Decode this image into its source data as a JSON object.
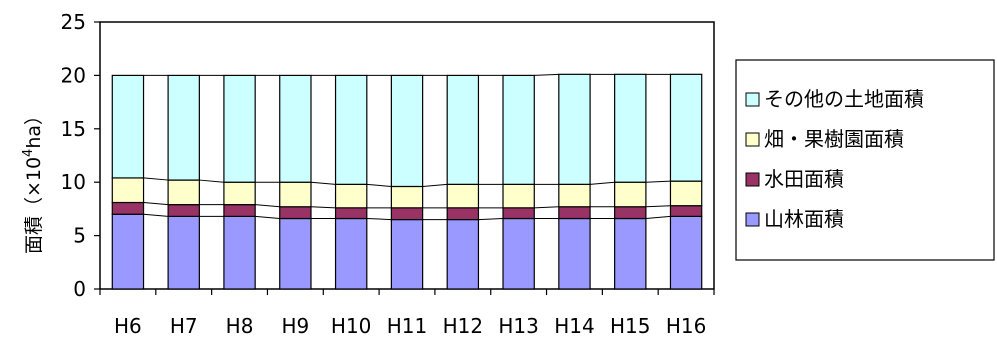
{
  "chart_data": {
    "type": "bar",
    "stacked": true,
    "categories": [
      "H6",
      "H7",
      "H8",
      "H9",
      "H10",
      "H11",
      "H12",
      "H13",
      "H14",
      "H15",
      "H16"
    ],
    "series": [
      {
        "name": "山林面積",
        "color": "#9999ff",
        "values": [
          7.0,
          6.8,
          6.8,
          6.6,
          6.6,
          6.5,
          6.5,
          6.6,
          6.6,
          6.6,
          6.8
        ]
      },
      {
        "name": "水田面積",
        "color": "#993366",
        "values": [
          1.1,
          1.1,
          1.1,
          1.1,
          1.0,
          1.1,
          1.1,
          1.0,
          1.1,
          1.1,
          1.0
        ]
      },
      {
        "name": "畑・果樹園面積",
        "color": "#ffffcc",
        "values": [
          2.3,
          2.3,
          2.1,
          2.3,
          2.2,
          2.0,
          2.2,
          2.2,
          2.1,
          2.3,
          2.3
        ]
      },
      {
        "name": "その他の土地面積",
        "color": "#ccffff",
        "values": [
          9.6,
          9.8,
          10.0,
          10.0,
          10.2,
          10.4,
          10.2,
          10.2,
          10.3,
          10.1,
          10.0
        ]
      }
    ],
    "legend_order": [
      "その他の土地面積",
      "畑・果樹園面積",
      "水田面積",
      "山林面積"
    ],
    "ylabel": "面積（×10⁴ha）",
    "ylabel_text": "面積（×10",
    "ylabel_sup": "4",
    "ylabel_unit": "ha）",
    "ylim": [
      0,
      25
    ],
    "yticks": [
      0,
      5,
      10,
      15,
      20,
      25
    ],
    "grid": false,
    "series_lines": true,
    "legend_position": "right"
  }
}
